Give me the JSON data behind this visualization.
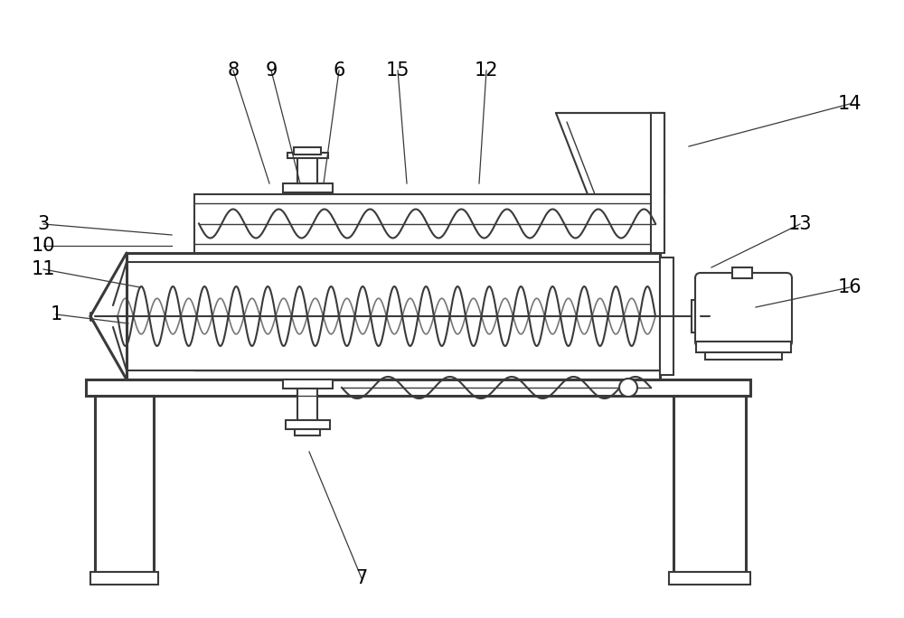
{
  "bg_color": "#ffffff",
  "line_color": "#3a3a3a",
  "lw": 1.5,
  "lw_thick": 2.2,
  "lw_thin": 1.0
}
